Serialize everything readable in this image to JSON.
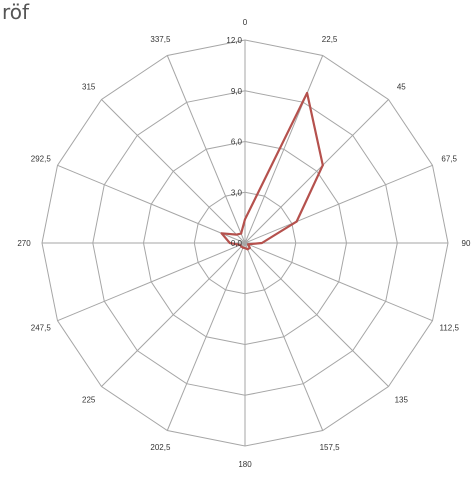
{
  "page_label": "röf",
  "chart_data": {
    "type": "radar",
    "directions": [
      "0",
      "22,5",
      "45",
      "67,5",
      "90",
      "112,5",
      "135",
      "157,5",
      "180",
      "202,5",
      "225",
      "247,5",
      "270",
      "292,5",
      "315",
      "337,5"
    ],
    "radial_ticks": [
      "0,0",
      "3,0",
      "6,0",
      "9,0",
      "12,0"
    ],
    "rmax": 12,
    "grid": true,
    "series": [
      {
        "color": "#b5514d",
        "values": [
          1.4,
          9.6,
          6.5,
          3.3,
          1.0,
          0.2,
          0.4,
          0.4,
          0.3,
          0.3,
          0.3,
          0.3,
          0.9,
          1.5,
          0.7,
          0.6
        ]
      }
    ]
  }
}
